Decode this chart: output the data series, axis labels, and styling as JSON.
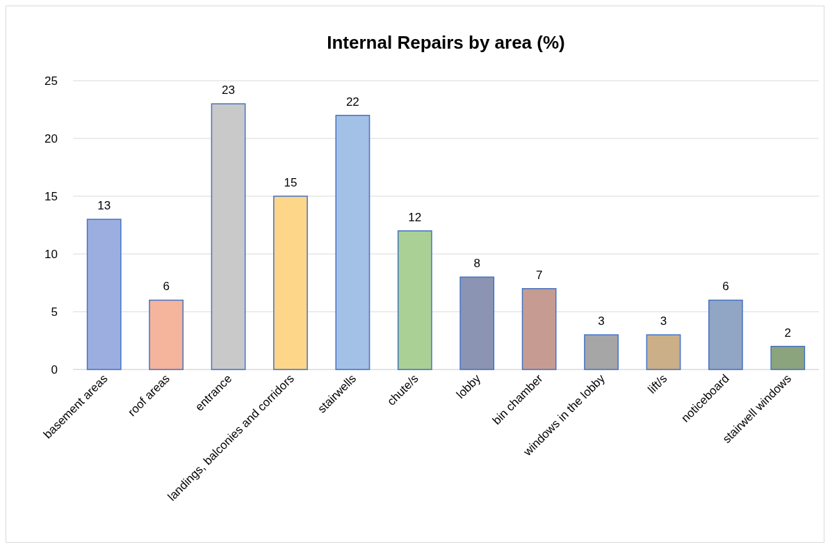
{
  "chart_data": {
    "type": "bar",
    "title": "Internal Repairs by area (%)",
    "categories": [
      "basement areas",
      "roof areas",
      "entrance",
      "landings, balconies and corridors",
      "stairwells",
      "chute/s",
      "lobby",
      "bin chamber",
      "windows in the lobby",
      "lift/s",
      "noticeboard",
      "stairwell windows"
    ],
    "values": [
      13,
      6,
      23,
      15,
      22,
      12,
      8,
      7,
      3,
      3,
      6,
      2
    ],
    "colors": [
      "#9caee0",
      "#f5b49c",
      "#c9c9c9",
      "#fdd68a",
      "#a3c1e6",
      "#aad096",
      "#8b94b2",
      "#c69c92",
      "#a6a6a6",
      "#cbaf88",
      "#91a5c4",
      "#8ca47e"
    ],
    "ylim": [
      0,
      25
    ],
    "yticks": [
      0,
      5,
      10,
      15,
      20,
      25
    ],
    "grid": "y",
    "data_labels": true
  }
}
